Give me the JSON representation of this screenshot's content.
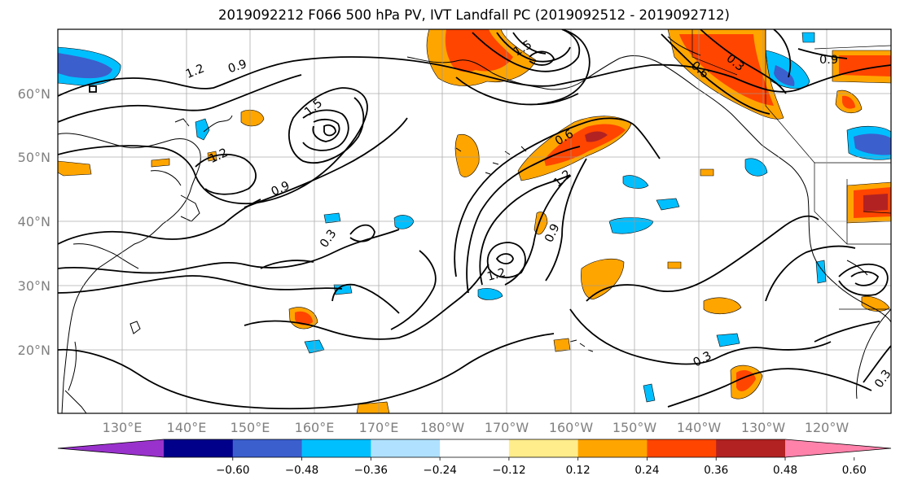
{
  "title": "2019092212 F066 500 hPa PV, IVT Landfall PC (2019092512 - 2019092712)",
  "lat_labels": [
    "60°N",
    "50°N",
    "40°N",
    "30°N",
    "20°N"
  ],
  "lon_labels": [
    "130°E",
    "140°E",
    "150°E",
    "160°E",
    "170°E",
    "180°W",
    "170°W",
    "160°W",
    "150°W",
    "140°W",
    "130°W",
    "120°W"
  ],
  "contour_labels": [
    "1.2",
    "0.9",
    "1.5",
    "1.5",
    "1.2",
    "0.9",
    "0.6",
    "1.2",
    "0.9",
    "1.2",
    "0.6",
    "0.3",
    "0.3",
    "0.9",
    "0.3",
    "0.3"
  ],
  "colorbar": {
    "colors": [
      "#9932cc",
      "#00008b",
      "#3b5fcd",
      "#00bfff",
      "#b0e2ff",
      "#ffffff",
      "#ffec8b",
      "#ffa500",
      "#ff4500",
      "#b22222",
      "#ff82ab"
    ],
    "tick_labels": [
      "−0.60",
      "−0.48",
      "−0.36",
      "−0.24",
      "−0.12",
      "0.12",
      "0.24",
      "0.36",
      "0.48",
      "0.60"
    ]
  },
  "colors": {
    "contour": "#000000",
    "grid": "#999999",
    "coast": "#000000"
  }
}
